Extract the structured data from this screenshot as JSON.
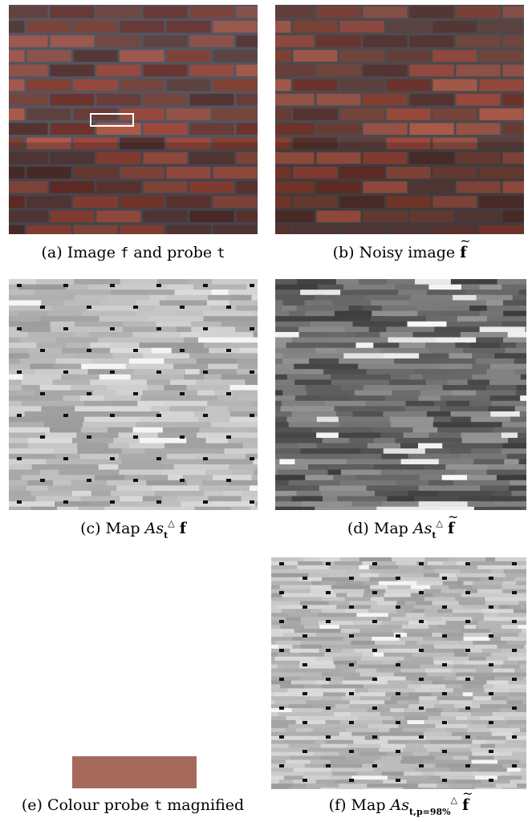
{
  "figure": {
    "captions": {
      "a": {
        "label": "(a) Image",
        "f": "f",
        "and": "and probe",
        "t": "t"
      },
      "b": {
        "label": "(b) Noisy image",
        "f": "f"
      },
      "c": {
        "label": "(c) Map",
        "As": "As",
        "sub": "t",
        "sup": "△",
        "f": "f"
      },
      "d": {
        "label": "(d) Map",
        "As": "As",
        "sub": "t",
        "sup": "△",
        "f": "f"
      },
      "e": {
        "label": "(e) Colour probe",
        "t": "t",
        "tail": "magnified"
      },
      "f": {
        "label": "(f) Map",
        "As": "As",
        "sub": "t,p=98%",
        "sup": "△",
        "f": "f"
      }
    },
    "probe_color": "#a66a5c"
  }
}
